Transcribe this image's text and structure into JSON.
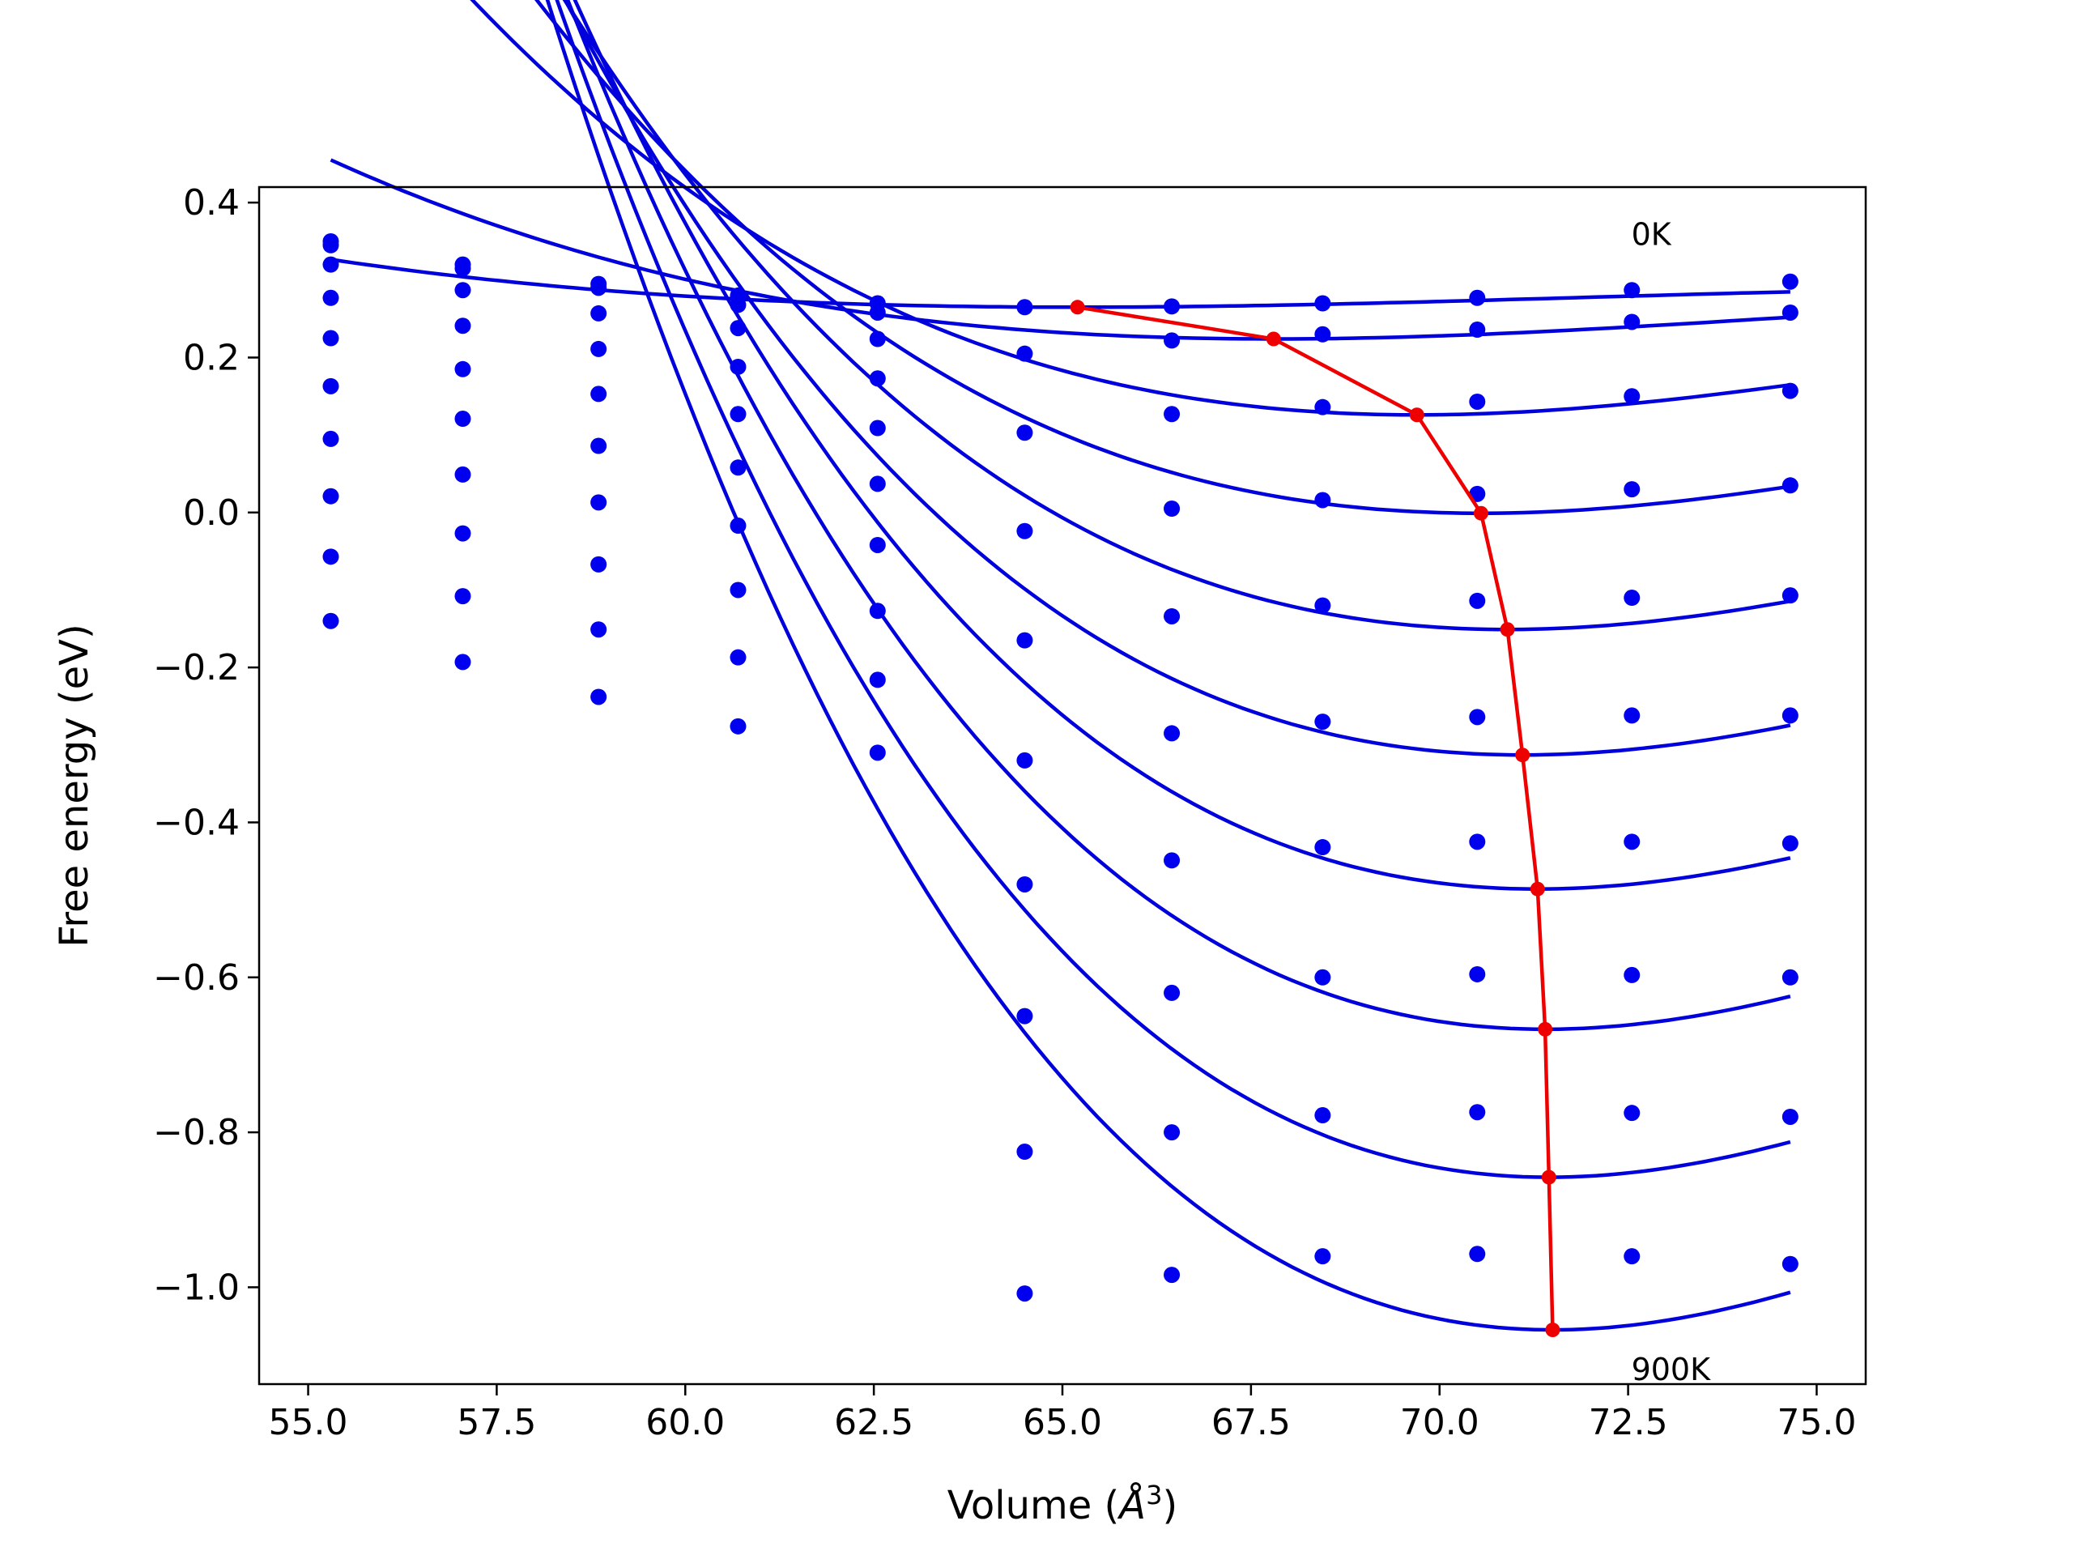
{
  "chart_data": {
    "type": "scatter",
    "title": "",
    "xlabel": "Volume (",
    "xlabel_symbol": "Å",
    "xlabel_exponent": "3",
    "xlabel_suffix": ")",
    "ylabel": "Free energy (eV)",
    "xlim": [
      54.35,
      75.65
    ],
    "ylim": [
      -1.125,
      0.42
    ],
    "xticks": [
      55.0,
      57.5,
      60.0,
      62.5,
      65.0,
      67.5,
      70.0,
      72.5,
      75.0
    ],
    "xtick_labels": [
      "55.0",
      "57.5",
      "60.0",
      "62.5",
      "65.0",
      "67.5",
      "70.0",
      "72.5",
      "75.0"
    ],
    "yticks": [
      0.4,
      0.2,
      0.0,
      -0.2,
      -0.4,
      -0.6,
      -0.8,
      -1.0
    ],
    "ytick_labels": [
      "0.4",
      "0.2",
      "0.0",
      "−0.2",
      "−0.4",
      "−0.6",
      "−0.8",
      "−1.0"
    ],
    "grid": false,
    "annotations": [
      {
        "text": "0K",
        "x": 72.5,
        "y": 0.36
      },
      {
        "text": "900K",
        "x": 72.5,
        "y": -1.105
      }
    ],
    "volumes": [
      55.3,
      57.05,
      58.85,
      60.7,
      62.55,
      64.5,
      66.45,
      68.45,
      70.5,
      72.55,
      74.65
    ],
    "series_points": [
      {
        "values": [
          0.35,
          0.32,
          0.295,
          0.28,
          0.27,
          0.265,
          0.266,
          0.27,
          0.277,
          0.287,
          0.298
        ]
      },
      {
        "values": [
          0.345,
          0.315,
          0.29,
          0.268,
          0.258,
          0.205,
          0.222,
          0.23,
          0.236,
          0.246,
          0.258
        ]
      },
      {
        "values": [
          0.32,
          0.287,
          0.257,
          0.238,
          0.224,
          0.103,
          0.127,
          0.136,
          0.143,
          0.15,
          0.157
        ]
      },
      {
        "values": [
          0.277,
          0.241,
          0.211,
          0.188,
          0.173,
          -0.024,
          0.005,
          0.016,
          0.024,
          0.03,
          0.035
        ]
      },
      {
        "values": [
          0.225,
          0.185,
          0.153,
          0.127,
          0.109,
          -0.165,
          -0.134,
          -0.12,
          -0.114,
          -0.11,
          -0.107
        ]
      },
      {
        "values": [
          0.163,
          0.121,
          0.086,
          0.058,
          0.037,
          -0.32,
          -0.285,
          -0.27,
          -0.264,
          -0.262,
          -0.262
        ]
      },
      {
        "values": [
          0.095,
          0.049,
          0.013,
          -0.017,
          -0.042,
          -0.48,
          -0.449,
          -0.432,
          -0.425,
          -0.425,
          -0.427
        ]
      },
      {
        "values": [
          0.021,
          -0.027,
          -0.067,
          -0.1,
          -0.127,
          -0.65,
          -0.62,
          -0.6,
          -0.596,
          -0.597,
          -0.6
        ]
      },
      {
        "values": [
          -0.057,
          -0.108,
          -0.151,
          -0.187,
          -0.216,
          -0.825,
          -0.8,
          -0.778,
          -0.774,
          -0.775,
          -0.78
        ]
      },
      {
        "values": [
          -0.14,
          -0.193,
          -0.238,
          -0.276,
          -0.31,
          -1.008,
          -0.984,
          -0.96,
          -0.957,
          -0.96,
          -0.97
        ]
      }
    ],
    "fit_curves": [
      {
        "min_volume": 65.2,
        "min_energy": 0.265,
        "a": 0.00042
      },
      {
        "min_volume": 67.8,
        "min_energy": 0.224,
        "a": 0.00091
      },
      {
        "min_volume": 69.7,
        "min_energy": 0.126,
        "a": 0.0021
      },
      {
        "min_volume": 70.55,
        "min_energy": -0.001,
        "a": 0.0026
      },
      {
        "min_volume": 70.9,
        "min_energy": -0.151,
        "a": 0.0032
      },
      {
        "min_volume": 71.1,
        "min_energy": -0.313,
        "a": 0.0037
      },
      {
        "min_volume": 71.3,
        "min_energy": -0.486,
        "a": 0.0043
      },
      {
        "min_volume": 71.4,
        "min_energy": -0.667,
        "a": 0.0048
      },
      {
        "min_volume": 71.45,
        "min_energy": -0.858,
        "a": 0.0053
      },
      {
        "min_volume": 71.5,
        "min_energy": -1.055,
        "a": 0.0058
      }
    ],
    "minimum_path": {
      "x": [
        65.2,
        67.8,
        69.7,
        70.55,
        70.9,
        71.1,
        71.3,
        71.4,
        71.45,
        71.5
      ],
      "y": [
        0.265,
        0.224,
        0.126,
        -0.001,
        -0.151,
        -0.313,
        -0.486,
        -0.667,
        -0.858,
        -1.055
      ]
    },
    "colors": {
      "points": "#0000ee",
      "fits": "#0000dd",
      "minimum_path": "#ee0000"
    }
  }
}
